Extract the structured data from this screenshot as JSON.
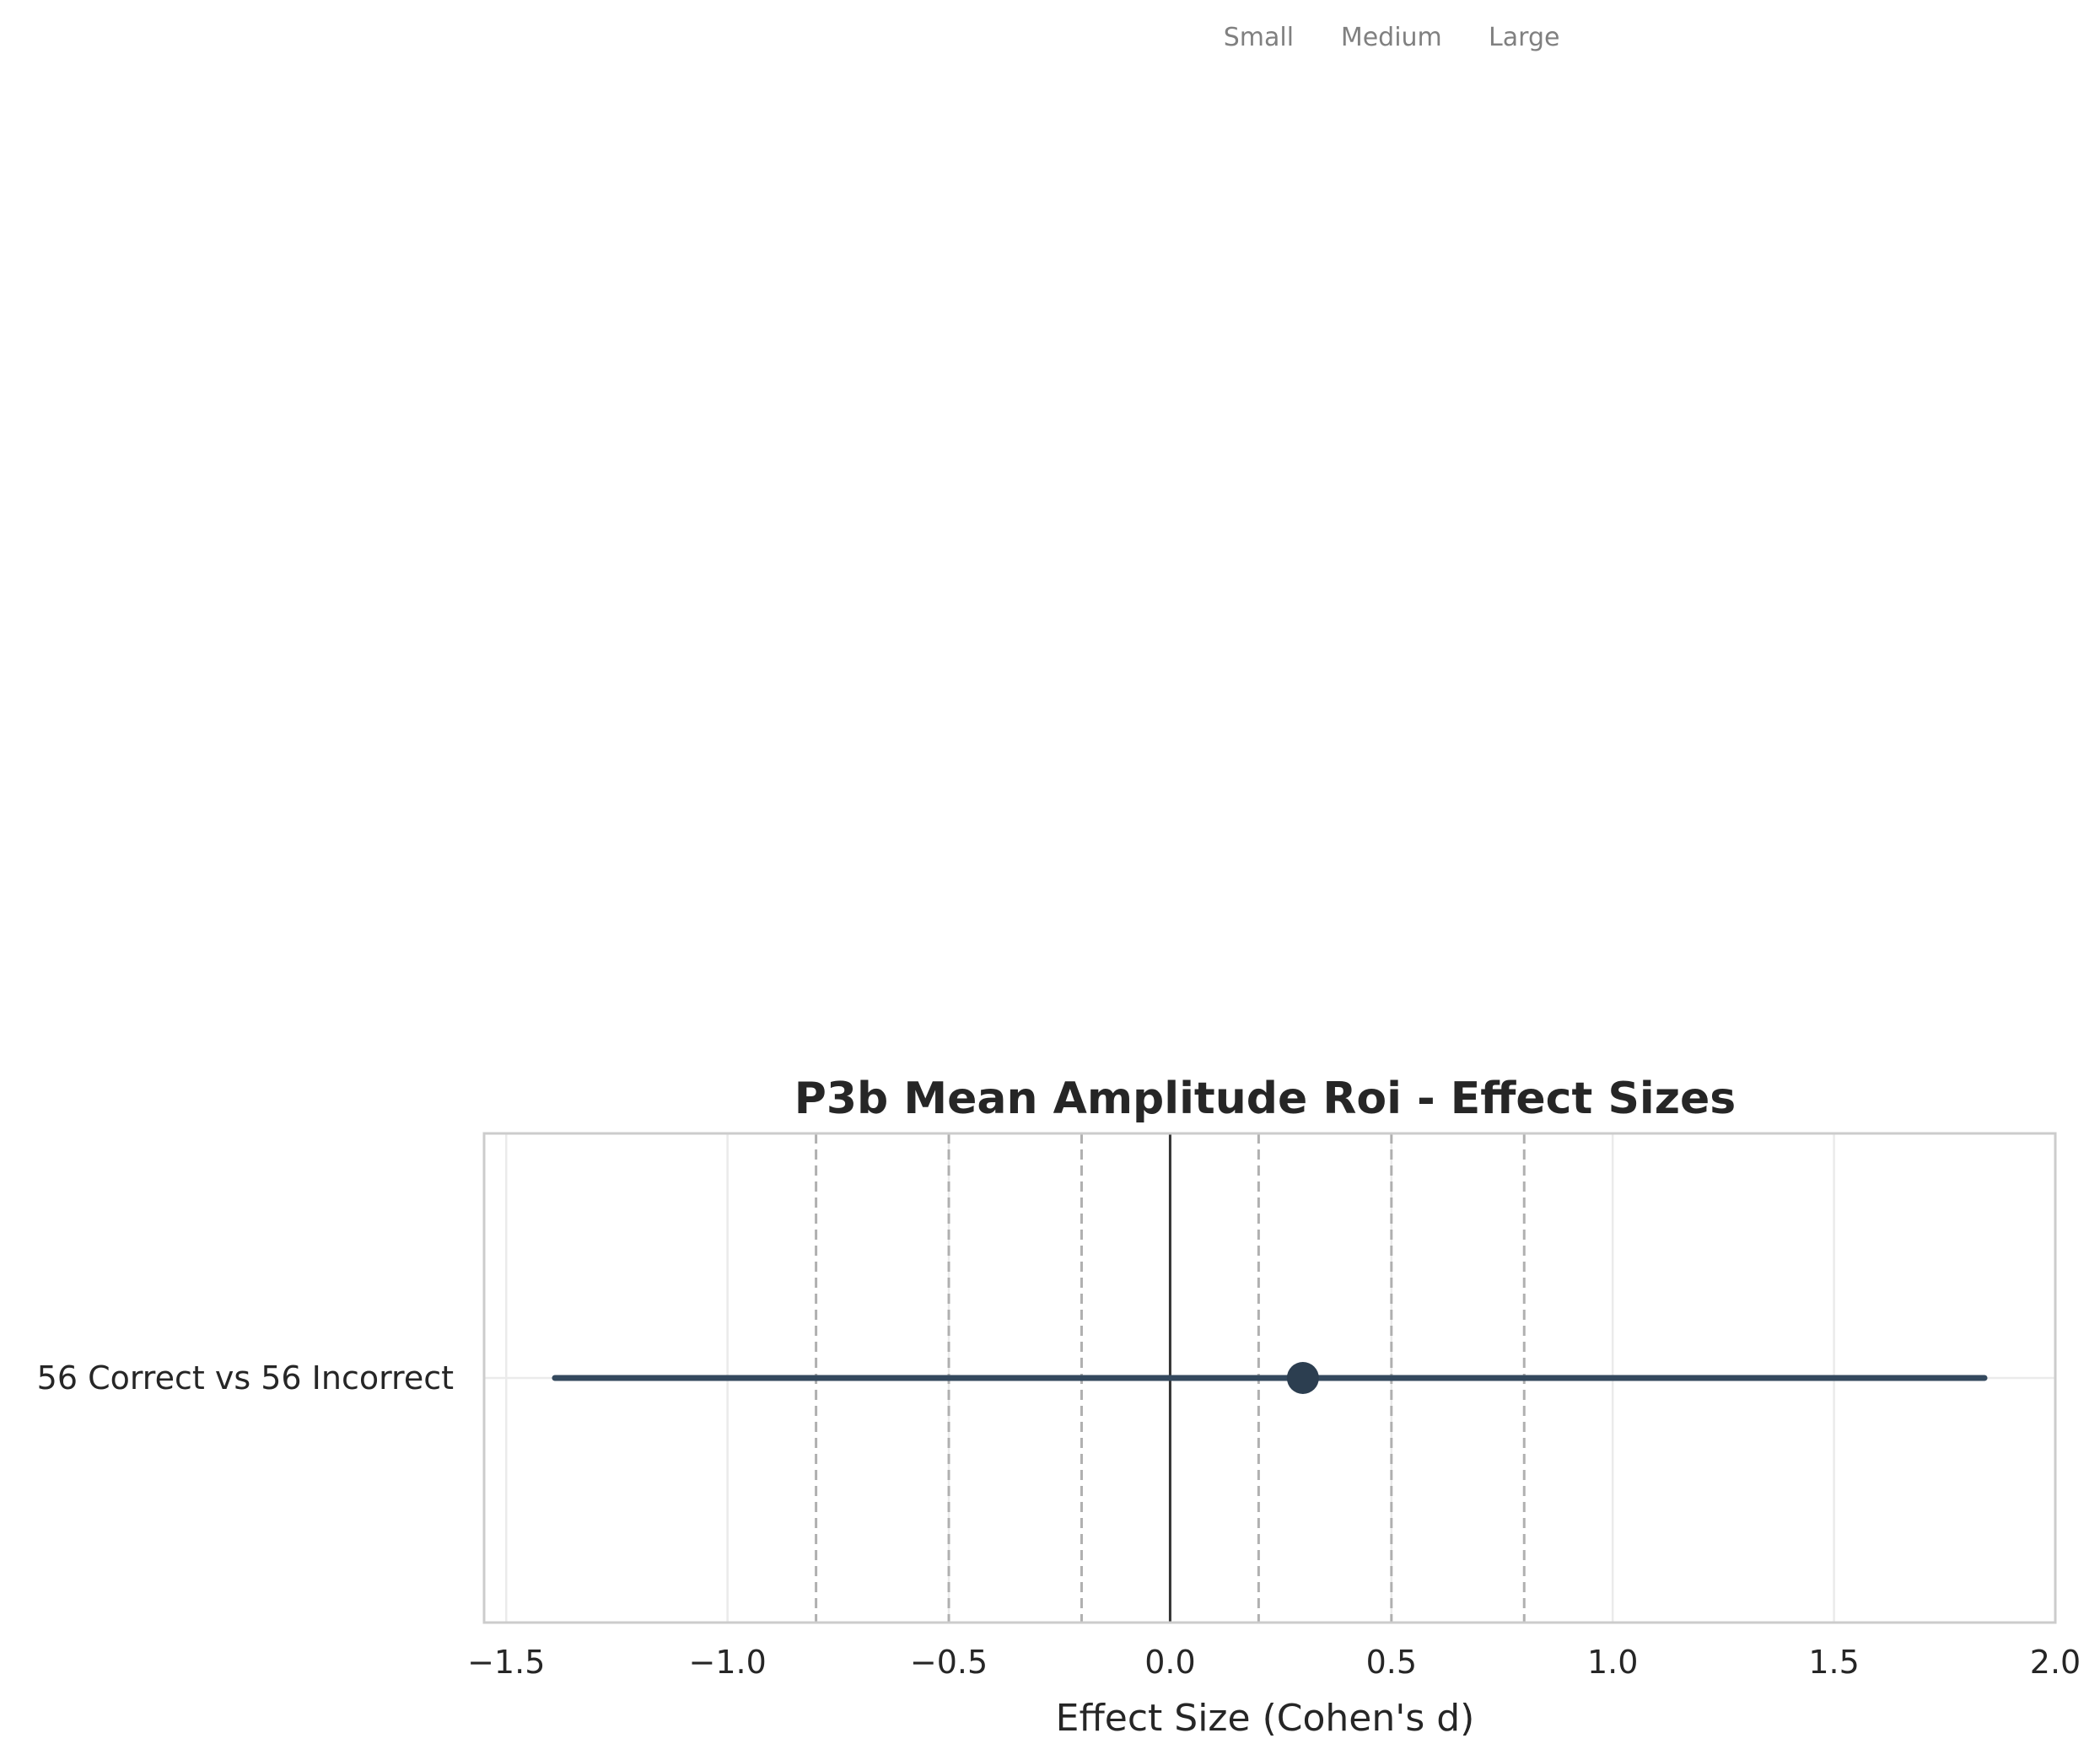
{
  "chart_data": {
    "type": "forest",
    "title": "P3b Mean Amplitude Roi - Effect Sizes",
    "xlabel": "Effect Size (Cohen's d)",
    "ylabel": "",
    "xlim": [
      -1.55,
      2.0
    ],
    "xticks": [
      -1.5,
      -1.0,
      -0.5,
      0.0,
      0.5,
      1.0,
      1.5,
      2.0
    ],
    "xtick_labels": [
      "−1.5",
      "−1.0",
      "−0.5",
      "0.0",
      "0.5",
      "1.0",
      "1.5",
      "2.0"
    ],
    "grid": true,
    "zero_line": 0.0,
    "reference_lines": [
      -0.8,
      -0.5,
      -0.2,
      0.2,
      0.5,
      0.8
    ],
    "reference_labels": [
      {
        "text": "Small",
        "x": 0.2
      },
      {
        "text": "Medium",
        "x": 0.5
      },
      {
        "text": "Large",
        "x": 0.8
      }
    ],
    "rows": [
      {
        "label": "56 Correct vs 56 Incorrect",
        "estimate": 0.3,
        "ci_low": -1.39,
        "ci_high": 1.84
      }
    ],
    "colors": {
      "point": "#2c3e50",
      "ci": "#34495e",
      "reference": "#b0b0b0",
      "grid": "#ebebeb",
      "zero": "#333333",
      "frame": "#cccccc"
    }
  }
}
